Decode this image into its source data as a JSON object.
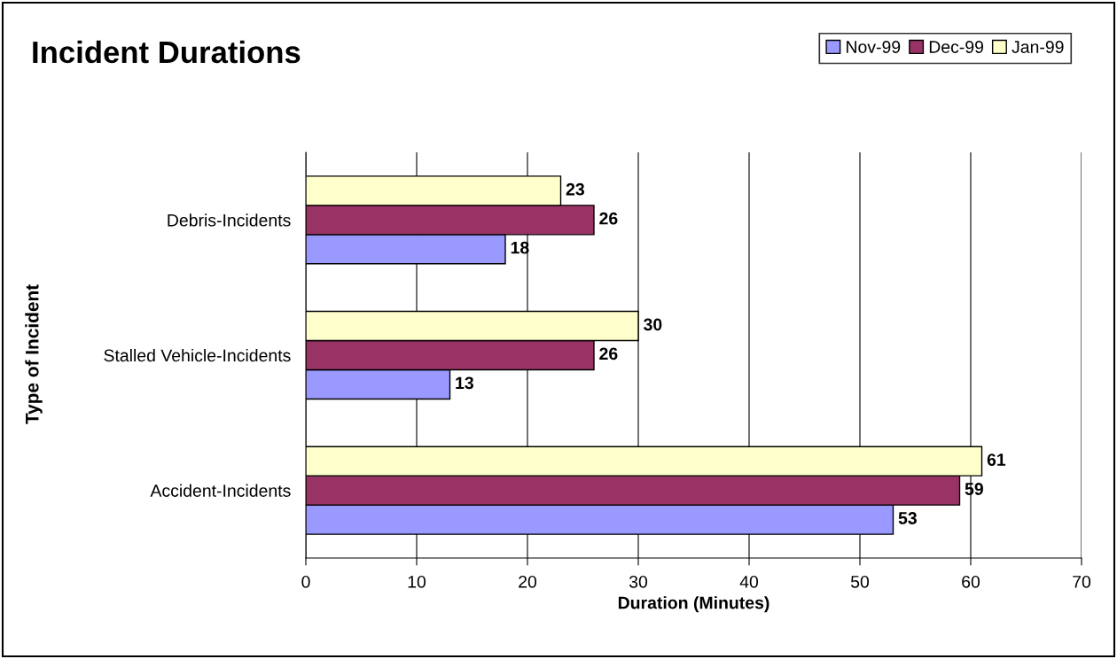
{
  "chart_data": {
    "type": "bar",
    "orientation": "horizontal",
    "title": "Incident Durations",
    "xlabel": "Duration (Minutes)",
    "ylabel": "Type of Incident",
    "categories": [
      "Debris-Incidents",
      "Stalled Vehicle-Incidents",
      "Accident-Incidents"
    ],
    "series": [
      {
        "name": "Nov-99",
        "color": "#9999ff",
        "values": [
          18,
          13,
          53
        ]
      },
      {
        "name": "Dec-99",
        "color": "#993366",
        "values": [
          26,
          26,
          59
        ]
      },
      {
        "name": "Jan-99",
        "color": "#ffffcc",
        "values": [
          23,
          30,
          61
        ]
      }
    ],
    "xlim": [
      0,
      70
    ],
    "xticks": [
      0,
      10,
      20,
      30,
      40,
      50,
      60,
      70
    ],
    "grid": "x",
    "legend": "top right",
    "data_labels": true
  }
}
